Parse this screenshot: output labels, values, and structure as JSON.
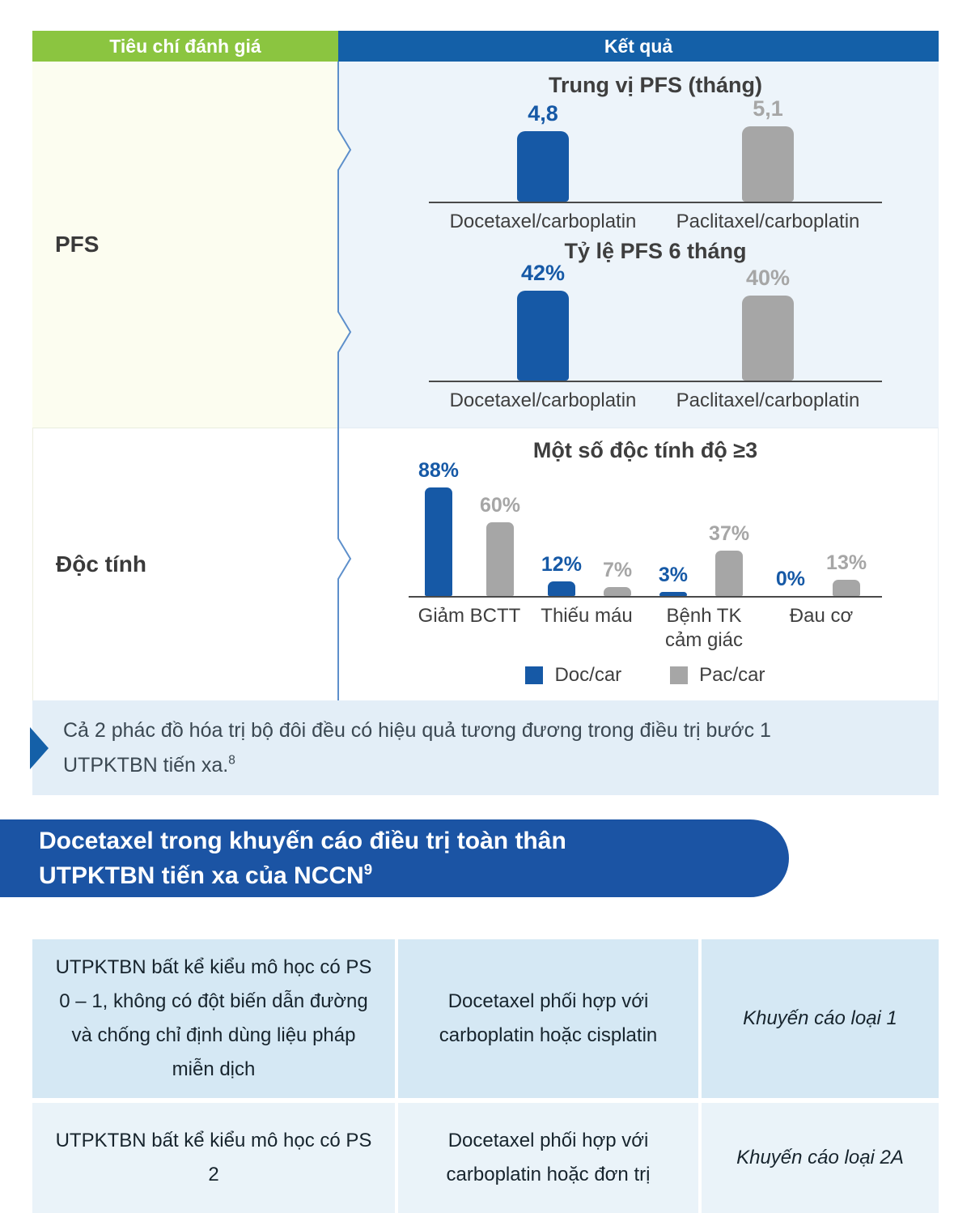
{
  "colors": {
    "green_header": "#8bc540",
    "blue_header": "#1460a8",
    "bar_blue": "#1659a6",
    "bar_gray": "#a6a6a6",
    "banner_blue": "#1b54a4",
    "note_bg": "#e3eef7",
    "pfs_row_left_bg": "#fcfdf0",
    "pfs_row_right_bg": "#edf4fa",
    "nccn_row1_bg": "#d5e8f4",
    "nccn_row2_bg": "#eaf3f9",
    "divider_line": "#5d8fcb"
  },
  "criteria_table": {
    "header_criteria": "Tiêu chí đánh giá",
    "header_result": "Kết quả",
    "row_pfs_label": "PFS",
    "row_toxicity_label": "Độc tính",
    "note_text": "Cả 2 phác đồ hóa trị bộ đôi đều có hiệu quả tương đương trong điều trị bước 1 UTPKTBN tiến xa.",
    "note_superscript": "8"
  },
  "chart_data": [
    {
      "type": "bar",
      "title": "Trung vị PFS (tháng)",
      "categories": [
        "Docetaxel/carboplatin",
        "Paclitaxel/carboplatin"
      ],
      "values": [
        4.8,
        5.1
      ],
      "value_labels": [
        "4,8",
        "5,1"
      ],
      "bar_colors": [
        "#1659a6",
        "#a6a6a6"
      ],
      "ylim": [
        0,
        5.5
      ],
      "grid": "off",
      "axis_style": "baseline only, no y-axis ticks"
    },
    {
      "type": "bar",
      "title": "Tỷ lệ PFS 6 tháng",
      "categories": [
        "Docetaxel/carboplatin",
        "Paclitaxel/carboplatin"
      ],
      "values": [
        42,
        40
      ],
      "value_labels": [
        "42%",
        "40%"
      ],
      "bar_colors": [
        "#1659a6",
        "#a6a6a6"
      ],
      "ylim": [
        0,
        44
      ],
      "grid": "off",
      "axis_style": "baseline only, no y-axis ticks"
    },
    {
      "type": "bar",
      "title": "Một số độc tính độ ≥3",
      "categories": [
        "Giảm BCTT",
        "Thiếu máu",
        "Bệnh TK cảm giác",
        "Đau cơ"
      ],
      "series": [
        {
          "name": "Doc/car",
          "color": "#1659a6",
          "values": [
            88,
            12,
            3,
            0
          ],
          "value_labels": [
            "88%",
            "12%",
            "3%",
            "0%"
          ]
        },
        {
          "name": "Pac/car",
          "color": "#a6a6a6",
          "values": [
            60,
            7,
            37,
            13
          ],
          "value_labels": [
            "60%",
            "7%",
            "37%",
            "13%"
          ]
        }
      ],
      "ylim": [
        0,
        92
      ],
      "grid": "off",
      "legend_position": "bottom",
      "axis_style": "baseline only, no y-axis ticks"
    }
  ],
  "banner": {
    "line1": "Docetaxel trong khuyến cáo điều trị toàn thân",
    "line2": "UTPKTBN tiến xa của NCCN",
    "superscript": "9"
  },
  "nccn_table": {
    "rows": [
      {
        "criteria": "UTPKTBN bất kể kiểu mô học có PS 0 – 1, không có đột biến dẫn đường và chống chỉ định dùng liệu pháp miễn dịch",
        "treatment": "Docetaxel phối hợp với carboplatin hoặc cisplatin",
        "recommendation": "Khuyến cáo loại 1"
      },
      {
        "criteria": "UTPKTBN bất kể kiểu mô học có PS 2",
        "treatment": "Docetaxel phối hợp với carboplatin hoặc đơn trị",
        "recommendation": "Khuyến cáo loại 2A"
      }
    ]
  }
}
